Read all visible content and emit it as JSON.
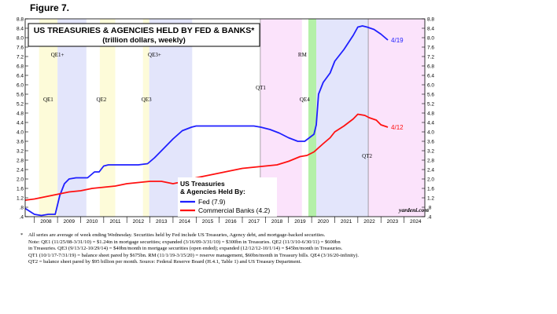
{
  "figure_label": "Figure 7.",
  "chart_data": {
    "type": "line",
    "title": "US TREASURIES & AGENCIES HELD BY FED & BANKS*",
    "subtitle": "(trillion dollars, weekly)",
    "legend_title": [
      "US Treasuries",
      "& Agencies Held By:"
    ],
    "legend_placement": "lower-center",
    "watermark": "yardeni.com",
    "ylim": [
      0.4,
      8.8
    ],
    "y_ticks": [
      ".4",
      ".8",
      "1.2",
      "1.6",
      "2.0",
      "2.4",
      "2.8",
      "3.2",
      "3.6",
      "4.0",
      "4.4",
      "4.8",
      "5.2",
      "5.6",
      "6.0",
      "6.4",
      "6.8",
      "7.2",
      "7.6",
      "8.0",
      "8.4",
      "8.8"
    ],
    "x_ticks": [
      "2008",
      "2009",
      "2010",
      "2011",
      "2012",
      "2013",
      "2014",
      "2015",
      "2016",
      "2017",
      "2018",
      "2019",
      "2020",
      "2021",
      "2022",
      "2023",
      "2024"
    ],
    "xlim": [
      2007.6,
      2024.9
    ],
    "shaded_periods": [
      {
        "label": "QE1",
        "start": 2008.2,
        "end": 2009.0,
        "color": "#fdfbd9"
      },
      {
        "label": "QE1+",
        "start": 2009.0,
        "end": 2010.25,
        "color": "#e3e5fb"
      },
      {
        "label": "QE2",
        "start": 2010.83,
        "end": 2011.5,
        "color": "#fdfbd9"
      },
      {
        "label": "QE3",
        "start": 2012.7,
        "end": 2012.97,
        "color": "#fdfbd9"
      },
      {
        "label": "QE3+",
        "start": 2012.97,
        "end": 2014.83,
        "color": "#e3e5fb"
      },
      {
        "label": "QT1",
        "start": 2017.78,
        "end": 2019.58,
        "color": "#fbe3fb"
      },
      {
        "label": "RM",
        "start": 2019.86,
        "end": 2020.2,
        "color": "#b4f0a8"
      },
      {
        "label": "QE4",
        "start": 2020.2,
        "end": 2022.45,
        "color": "#e3e5fb"
      },
      {
        "label": "QT2",
        "start": 2022.45,
        "end": 2024.9,
        "color": "#fbe3fb"
      }
    ],
    "period_labels": [
      {
        "text": "QE1+",
        "x": 2009.0,
        "y": 7.2
      },
      {
        "text": "QE1",
        "x": 2008.6,
        "y": 5.3
      },
      {
        "text": "QE2",
        "x": 2010.9,
        "y": 5.3
      },
      {
        "text": "QE3+",
        "x": 2013.2,
        "y": 7.2
      },
      {
        "text": "QE3",
        "x": 2012.85,
        "y": 5.3
      },
      {
        "text": "QT1",
        "x": 2017.8,
        "y": 5.8
      },
      {
        "text": "RM",
        "x": 2019.6,
        "y": 7.2
      },
      {
        "text": "QE4",
        "x": 2019.7,
        "y": 5.3
      },
      {
        "text": "QT2",
        "x": 2022.4,
        "y": 2.9
      }
    ],
    "series": [
      {
        "name": "Fed (7.9)",
        "color": "#1f1fff",
        "end_label": "4/19",
        "x": [
          2007.6,
          2008.0,
          2008.3,
          2008.6,
          2008.9,
          2009.1,
          2009.3,
          2009.5,
          2009.8,
          2010.0,
          2010.3,
          2010.6,
          2010.8,
          2011.0,
          2011.2,
          2011.5,
          2011.8,
          2012.0,
          2012.5,
          2012.9,
          2013.2,
          2013.6,
          2014.0,
          2014.4,
          2014.8,
          2015.0,
          2015.5,
          2016.0,
          2016.5,
          2017.0,
          2017.5,
          2017.8,
          2018.2,
          2018.6,
          2019.0,
          2019.4,
          2019.7,
          2019.9,
          2020.1,
          2020.2,
          2020.3,
          2020.5,
          2020.8,
          2021.0,
          2021.4,
          2021.8,
          2022.0,
          2022.2,
          2022.4,
          2022.7,
          2023.0,
          2023.3
        ],
        "values": [
          0.75,
          0.5,
          0.45,
          0.5,
          0.5,
          1.3,
          1.8,
          2.0,
          2.05,
          2.05,
          2.05,
          2.3,
          2.3,
          2.55,
          2.6,
          2.6,
          2.6,
          2.6,
          2.6,
          2.65,
          2.9,
          3.3,
          3.7,
          4.05,
          4.2,
          4.25,
          4.25,
          4.25,
          4.25,
          4.25,
          4.25,
          4.2,
          4.1,
          3.95,
          3.75,
          3.6,
          3.6,
          3.75,
          3.9,
          4.3,
          5.6,
          6.1,
          6.5,
          7.0,
          7.5,
          8.1,
          8.45,
          8.5,
          8.45,
          8.35,
          8.15,
          7.9
        ]
      },
      {
        "name": "Commercial Banks (4.2)",
        "color": "#ff1010",
        "end_label": "4/12",
        "x": [
          2007.6,
          2008.0,
          2008.5,
          2009.0,
          2009.5,
          2010.0,
          2010.5,
          2011.0,
          2011.5,
          2012.0,
          2012.5,
          2013.0,
          2013.5,
          2014.0,
          2014.5,
          2015.0,
          2015.5,
          2016.0,
          2016.5,
          2017.0,
          2017.5,
          2018.0,
          2018.5,
          2019.0,
          2019.5,
          2019.8,
          2020.1,
          2020.5,
          2020.8,
          2021.0,
          2021.4,
          2021.8,
          2022.0,
          2022.3,
          2022.5,
          2022.8,
          2023.0,
          2023.3
        ],
        "values": [
          1.1,
          1.15,
          1.25,
          1.35,
          1.45,
          1.5,
          1.6,
          1.65,
          1.7,
          1.8,
          1.85,
          1.9,
          1.9,
          1.8,
          1.9,
          2.05,
          2.15,
          2.25,
          2.35,
          2.45,
          2.5,
          2.55,
          2.6,
          2.75,
          2.95,
          3.0,
          3.15,
          3.5,
          3.75,
          4.0,
          4.25,
          4.55,
          4.75,
          4.7,
          4.6,
          4.5,
          4.3,
          4.2
        ]
      }
    ]
  },
  "notes": [
    "All series are average of week ending Wednesday. Securities held by Fed include US Treasuries, Agency debt, and mortgage-backed securities.",
    "Note: QE1 (11/25/08-3/31/10) = $1.24tn in mortgage securities; expanded (3/16/09-3/31/10) = $300bn in Treasuries. QE2 (11/3/10-6/30/11) = $600bn",
    "in Treasuries. QE3 (9/13/12-10/29/14) = $40bn/month in mortgage securities (open ended); expanded (12/12/12-10/1/14) = $45bn/month in Treasuries.",
    "QT1 (10/1/17-7/31/19) = balance sheet pared by $675bn. RM (11/1/19-3/15/20) = reserve management, $60bn/month in Treasury bills. QE4 (3/16/20-infinity).",
    "QT2 = balance sheet pared by $95 billion per month. Source: Federal Reserve Board (H.4.1, Table 1) and US Treasury Department."
  ],
  "note_marker": "*"
}
